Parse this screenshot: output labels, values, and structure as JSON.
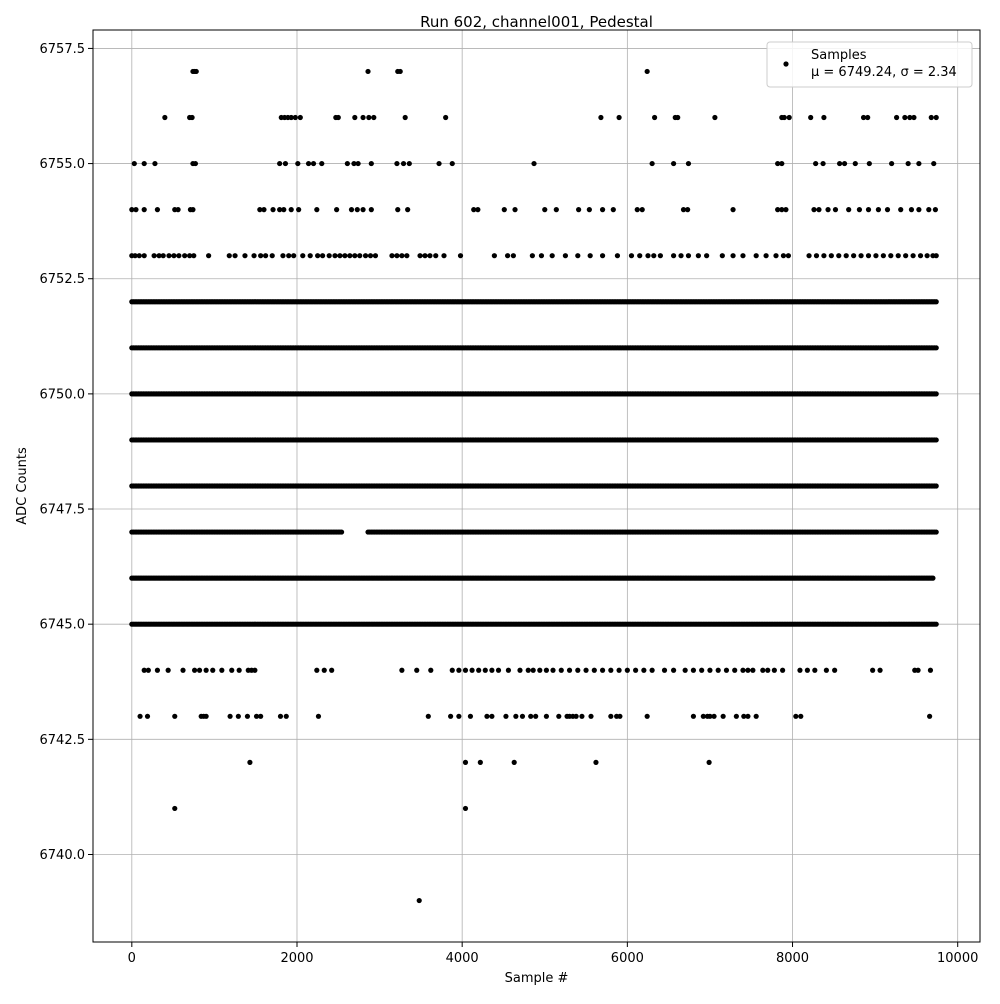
{
  "chart_data": {
    "type": "scatter",
    "title": "Run 602, channel001, Pedestal",
    "xlabel": "Sample #",
    "ylabel": "ADC Counts",
    "xlim": [
      -470,
      10270
    ],
    "ylim": [
      6738.1,
      6757.9
    ],
    "xticks": [
      0,
      2000,
      4000,
      6000,
      8000,
      10000
    ],
    "xtick_labels": [
      "0",
      "2000",
      "4000",
      "6000",
      "8000",
      "10000"
    ],
    "yticks": [
      6740.0,
      6742.5,
      6745.0,
      6747.5,
      6750.0,
      6752.5,
      6755.0,
      6757.5
    ],
    "ytick_labels": [
      "6740.0",
      "6742.5",
      "6745.0",
      "6747.5",
      "6750.0",
      "6752.5",
      "6755.0",
      "6757.5"
    ],
    "grid": true,
    "legend": {
      "placement": "top-right",
      "entries": [
        {
          "label": "Samples",
          "stats": "μ = 6749.24, σ = 2.34"
        }
      ]
    },
    "marker_color": "#000000",
    "series": [
      {
        "name": "Samples",
        "sample_count": 9750,
        "mean": 6749.24,
        "sigma": 2.34,
        "rows": [
          {
            "y": 6757,
            "x": [
              740,
              760,
              780,
              2860,
              3220,
              3250,
              6240
            ]
          },
          {
            "y": 6756,
            "x": [
              400,
              700,
              730,
              1810,
              1850,
              1890,
              1930,
              1980,
              2040,
              2470,
              2500,
              2700,
              2800,
              2870,
              2930,
              3310,
              3800,
              5680,
              5900,
              6330,
              6580,
              6610,
              7060,
              7870,
              7900,
              7960,
              8220,
              8380,
              8860,
              8910,
              9260,
              9360,
              9420,
              9470,
              9680,
              9740
            ]
          },
          {
            "y": 6755,
            "x": [
              30,
              150,
              280,
              740,
              770,
              1790,
              1860,
              2010,
              2140,
              2200,
              2300,
              2610,
              2690,
              2740,
              2900,
              3210,
              3290,
              3360,
              3720,
              3880,
              4870,
              6300,
              6560,
              6740,
              7820,
              7870,
              8280,
              8370,
              8570,
              8630,
              8760,
              8930,
              9200,
              9400,
              9530,
              9710
            ]
          },
          {
            "y": 6754,
            "x": [
              0,
              50,
              150,
              310,
              520,
              560,
              710,
              740,
              1550,
              1600,
              1710,
              1790,
              1840,
              1930,
              2020,
              2240,
              2480,
              2660,
              2730,
              2800,
              2900,
              3220,
              3340,
              4140,
              4190,
              4510,
              4640,
              5000,
              5140,
              5410,
              5540,
              5700,
              5830,
              6120,
              6180,
              6680,
              6730,
              7280,
              7820,
              7870,
              7920,
              8260,
              8320,
              8430,
              8520,
              8680,
              8810,
              8920,
              9040,
              9150,
              9310,
              9440,
              9530,
              9650,
              9730
            ]
          },
          {
            "y": 6753,
            "x": [
              0,
              40,
              90,
              150,
              270,
              330,
              380,
              450,
              510,
              570,
              640,
              700,
              750,
              930,
              1180,
              1250,
              1370,
              1480,
              1560,
              1620,
              1700,
              1830,
              1900,
              1960,
              2070,
              2160,
              2250,
              2310,
              2390,
              2460,
              2520,
              2580,
              2640,
              2700,
              2760,
              2830,
              2890,
              2950,
              3150,
              3210,
              3270,
              3330,
              3490,
              3550,
              3610,
              3680,
              3780,
              3980,
              4390,
              4550,
              4620,
              4850,
              4960,
              5090,
              5250,
              5400,
              5550,
              5700,
              5880,
              6050,
              6150,
              6250,
              6320,
              6400,
              6560,
              6650,
              6740,
              6860,
              6960,
              7150,
              7280,
              7400,
              7560,
              7680,
              7800,
              7890,
              7950,
              8200,
              8290,
              8380,
              8470,
              8560,
              8650,
              8740,
              8830,
              8920,
              9010,
              9100,
              9190,
              9280,
              9370,
              9460,
              9550,
              9630,
              9700,
              9740
            ]
          },
          {
            "y": 6744,
            "x": [
              150,
              200,
              310,
              440,
              620,
              760,
              820,
              900,
              980,
              1090,
              1210,
              1300,
              1410,
              1450,
              1490,
              2240,
              2330,
              2420,
              3270,
              3450,
              3620,
              3880,
              3960,
              4040,
              4120,
              4200,
              4280,
              4360,
              4440,
              4560,
              4700,
              4800,
              4860,
              4940,
              5020,
              5100,
              5200,
              5300,
              5400,
              5500,
              5600,
              5700,
              5800,
              5900,
              6000,
              6100,
              6200,
              6300,
              6450,
              6560,
              6700,
              6800,
              6900,
              7000,
              7100,
              7200,
              7300,
              7400,
              7460,
              7520,
              7640,
              7700,
              7780,
              7880,
              8090,
              8180,
              8270,
              8410,
              8510,
              8970,
              9060,
              9480,
              9520,
              9670
            ]
          },
          {
            "y": 6743,
            "x": [
              100,
              190,
              520,
              840,
              870,
              900,
              1190,
              1290,
              1400,
              1510,
              1560,
              1800,
              1870,
              2260,
              3590,
              3860,
              3960,
              4100,
              4300,
              4360,
              4530,
              4650,
              4730,
              4830,
              4890,
              5020,
              5170,
              5270,
              5300,
              5340,
              5380,
              5450,
              5560,
              5800,
              5870,
              5910,
              6240,
              6800,
              6920,
              6970,
              7000,
              7050,
              7160,
              7320,
              7410,
              7460,
              7560,
              8040,
              8100,
              9660
            ]
          },
          {
            "y": 6742,
            "x": [
              1430,
              4040,
              4220,
              4630,
              5620,
              6990
            ]
          },
          {
            "y": 6741,
            "x": [
              520,
              4040
            ]
          },
          {
            "y": 6739,
            "x": [
              3480
            ]
          }
        ],
        "dense_rows": [
          {
            "y": 6752,
            "x_start": 0,
            "x_end": 9740
          },
          {
            "y": 6751,
            "x_start": 0,
            "x_end": 9740
          },
          {
            "y": 6750,
            "x_start": 0,
            "x_end": 9740
          },
          {
            "y": 6749,
            "x_start": 0,
            "x_end": 9740
          },
          {
            "y": 6748,
            "x_start": 0,
            "x_end": 9740
          },
          {
            "y": 6747,
            "x_start": 0,
            "x_end": 9740,
            "gap": [
              2550,
              2850
            ]
          },
          {
            "y": 6746,
            "x_start": 0,
            "x_end": 9700
          },
          {
            "y": 6745,
            "x_start": 0,
            "x_end": 9740
          }
        ]
      }
    ]
  }
}
